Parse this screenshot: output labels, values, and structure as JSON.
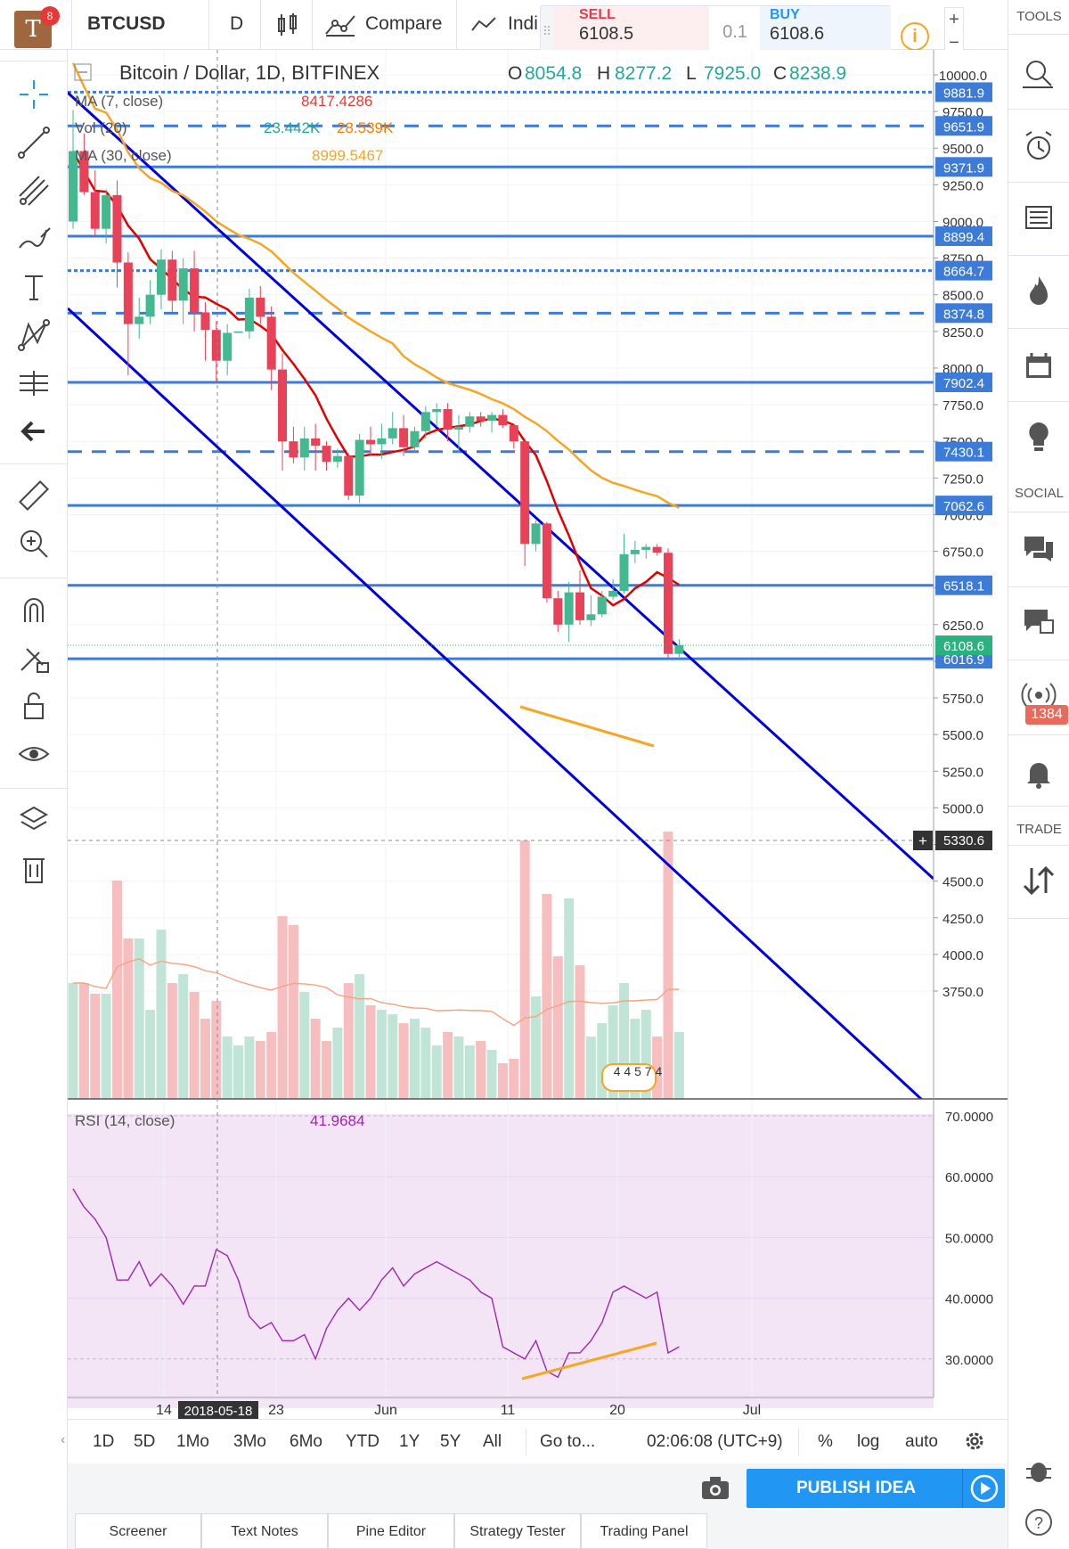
{
  "header": {
    "notification_count": "8",
    "symbol": "BTCUSD",
    "interval": "D",
    "compare_label": "Compare",
    "indicators_label": "Indi",
    "sell_label": "SELL",
    "sell_price": "6108.5",
    "quantity": "0.1",
    "buy_label": "BUY",
    "buy_price": "6108.6"
  },
  "chart_title": "Bitcoin / Dollar, 1D, BITFINEX",
  "ohlc": {
    "o_label": "O",
    "o": "8054.8",
    "h_label": "H",
    "h": "8277.2",
    "l_label": "L",
    "l": "7925.0",
    "c_label": "C",
    "c": "8238.9"
  },
  "studies": {
    "ma7_label": "MA (7, close)",
    "ma7_value": "8417.4286",
    "vol_label": "Vol (20)",
    "vol_value1": "23.442K",
    "vol_value2": "28.539K",
    "ma30_label": "MA (30, close)",
    "ma30_value": "8999.5467",
    "rsi_label": "RSI (14, close)",
    "rsi_value": "41.9684"
  },
  "crosshair_date": "2018-05-18",
  "crosshair_price": "5330.6",
  "volume_badge": "4 4 5 7 4",
  "time_labels": [
    "14",
    "23",
    "Jun",
    "11",
    "20",
    "Jul"
  ],
  "price_ticks": [
    "10000.0",
    "9750.0",
    "9500.0",
    "9250.0",
    "9000.0",
    "8750.0",
    "8500.0",
    "8250.0",
    "8000.0",
    "7750.0",
    "7500.0",
    "7250.0",
    "7000.0",
    "6750.0",
    "6500.0",
    "6250.0",
    "6000.0",
    "5750.0",
    "5500.0",
    "5250.0",
    "5000.0",
    "4750.0",
    "4500.0",
    "4250.0",
    "4000.0",
    "3750.0"
  ],
  "rsi_ticks": [
    "70.0000",
    "60.0000",
    "50.0000",
    "40.0000",
    "30.0000"
  ],
  "horizontal_levels": [
    {
      "label": "9881.9",
      "value": 9881.9,
      "style": "dotted"
    },
    {
      "label": "9651.9",
      "value": 9651.9,
      "style": "dashed"
    },
    {
      "label": "9371.9",
      "value": 9371.9,
      "style": "solid"
    },
    {
      "label": "8899.4",
      "value": 8899.4,
      "style": "solid"
    },
    {
      "label": "8664.7",
      "value": 8664.7,
      "style": "dotted"
    },
    {
      "label": "8374.8",
      "value": 8374.8,
      "style": "dashed"
    },
    {
      "label": "7902.4",
      "value": 7902.4,
      "style": "solid"
    },
    {
      "label": "7430.1",
      "value": 7430.1,
      "style": "dashed"
    },
    {
      "label": "7062.6",
      "value": 7062.6,
      "style": "solid"
    },
    {
      "label": "6518.1",
      "value": 6518.1,
      "style": "solid"
    },
    {
      "label": "6016.9",
      "value": 6016.9,
      "style": "solid"
    }
  ],
  "last_price_label": "6108.6",
  "bottom_bar": {
    "ranges": [
      "1D",
      "5D",
      "1Mo",
      "3Mo",
      "6Mo",
      "YTD",
      "1Y",
      "5Y",
      "All"
    ],
    "goto": "Go to...",
    "time": "02:06:08 (UTC+9)",
    "percent": "%",
    "log": "log",
    "auto": "auto",
    "publish": "PUBLISH IDEA"
  },
  "bottom_tabs": [
    "Screener",
    "Text Notes",
    "Pine Editor",
    "Strategy Tester",
    "Trading Panel"
  ],
  "right_panel": {
    "tools_title": "TOOLS",
    "social_title": "SOCIAL",
    "trade_title": "TRADE",
    "stream_badge": "1384"
  },
  "colors": {
    "up": "#26a69a",
    "down": "#ef5350",
    "ma7": "#e00000",
    "ma30": "#f5a623",
    "channel": "#0000dd",
    "level": "#3d7bd9",
    "rsi_line": "#9c27b0",
    "rsi_bg": "#f3e5f5",
    "trend_orange": "#f5a623"
  },
  "icons": [
    "crosshair-icon",
    "trend-line-icon",
    "pitchfork-icon",
    "brush-icon",
    "text-icon",
    "pattern-icon",
    "prediction-icon",
    "back-arrow-icon",
    "ruler-icon",
    "zoom-icon",
    "magnet-icon",
    "lock-drawing-icon",
    "unlock-icon",
    "eye-icon",
    "layers-icon",
    "trash-icon"
  ],
  "chart_data": {
    "type": "candlestick",
    "title": "Bitcoin / Dollar, 1D, BITFINEX",
    "ylim": [
      3750,
      10000
    ],
    "candles_ohlc": [
      [
        9000,
        9760,
        8950,
        9480
      ],
      [
        9480,
        9600,
        9180,
        9200
      ],
      [
        9200,
        9350,
        8900,
        8950
      ],
      [
        8950,
        9220,
        8850,
        9180
      ],
      [
        9180,
        9280,
        8550,
        8720
      ],
      [
        8720,
        8790,
        7950,
        8300
      ],
      [
        8300,
        8480,
        8200,
        8350
      ],
      [
        8350,
        8600,
        8300,
        8500
      ],
      [
        8500,
        8810,
        8400,
        8740
      ],
      [
        8740,
        8800,
        8380,
        8460
      ],
      [
        8460,
        8750,
        8300,
        8680
      ],
      [
        8680,
        8800,
        8250,
        8380
      ],
      [
        8380,
        8450,
        8050,
        8260
      ],
      [
        8260,
        8320,
        7900,
        8050
      ],
      [
        8050,
        8300,
        7950,
        8240
      ],
      [
        8240,
        8250,
        8240,
        8250
      ],
      [
        8250,
        8540,
        8200,
        8480
      ],
      [
        8480,
        8560,
        8300,
        8350
      ],
      [
        8350,
        8420,
        7850,
        7990
      ],
      [
        7990,
        8100,
        7300,
        7500
      ],
      [
        7500,
        7600,
        7350,
        7390
      ],
      [
        7390,
        7600,
        7300,
        7520
      ],
      [
        7520,
        7620,
        7300,
        7470
      ],
      [
        7470,
        7500,
        7300,
        7360
      ],
      [
        7360,
        7450,
        7320,
        7400
      ],
      [
        7400,
        7420,
        7100,
        7130
      ],
      [
        7130,
        7550,
        7080,
        7510
      ],
      [
        7510,
        7600,
        7400,
        7480
      ],
      [
        7480,
        7620,
        7380,
        7520
      ],
      [
        7520,
        7700,
        7480,
        7590
      ],
      [
        7590,
        7680,
        7400,
        7460
      ],
      [
        7460,
        7600,
        7420,
        7570
      ],
      [
        7570,
        7740,
        7520,
        7700
      ],
      [
        7700,
        7760,
        7600,
        7720
      ],
      [
        7720,
        7760,
        7500,
        7580
      ],
      [
        7580,
        7680,
        7420,
        7600
      ],
      [
        7600,
        7700,
        7560,
        7670
      ],
      [
        7670,
        7700,
        7600,
        7640
      ],
      [
        7640,
        7700,
        7560,
        7680
      ],
      [
        7680,
        7720,
        7590,
        7610
      ],
      [
        7610,
        7620,
        7450,
        7500
      ],
      [
        7500,
        7520,
        6650,
        6800
      ],
      [
        6800,
        6960,
        6750,
        6940
      ],
      [
        6940,
        6950,
        6400,
        6430
      ],
      [
        6430,
        6480,
        6200,
        6250
      ],
      [
        6250,
        6540,
        6130,
        6470
      ],
      [
        6470,
        6620,
        6250,
        6280
      ],
      [
        6280,
        6450,
        6240,
        6320
      ],
      [
        6320,
        6480,
        6300,
        6440
      ],
      [
        6440,
        6560,
        6420,
        6480
      ],
      [
        6480,
        6870,
        6460,
        6730
      ],
      [
        6730,
        6820,
        6670,
        6760
      ],
      [
        6760,
        6800,
        6700,
        6780
      ],
      [
        6780,
        6800,
        6720,
        6740
      ],
      [
        6740,
        6770,
        6020,
        6050
      ],
      [
        6050,
        6150,
        6030,
        6108.6
      ]
    ]
  }
}
